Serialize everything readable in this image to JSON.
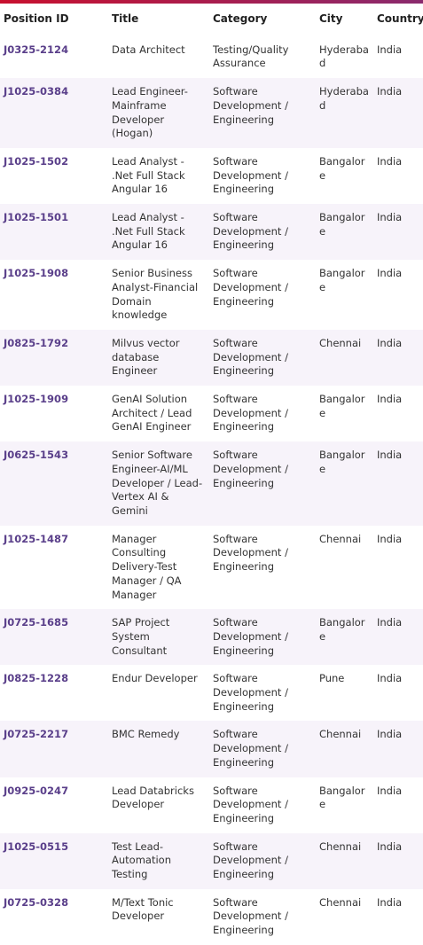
{
  "table": {
    "headers": [
      "Position ID",
      "Title",
      "Category",
      "City",
      "Country"
    ],
    "rows": [
      [
        "J0325-2124",
        "Data Architect",
        "Testing/Quality Assurance",
        "Hyderabad",
        "India"
      ],
      [
        "J1025-0384",
        "Lead Engineer-Mainframe Developer (Hogan)",
        "Software Development / Engineering",
        "Hyderabad",
        "India"
      ],
      [
        "J1025-1502",
        "Lead Analyst - .Net Full Stack Angular 16",
        "Software Development / Engineering",
        "Bangalore",
        "India"
      ],
      [
        "J1025-1501",
        "Lead Analyst - .Net Full Stack Angular 16",
        "Software Development / Engineering",
        "Bangalore",
        "India"
      ],
      [
        "J1025-1908",
        "Senior Business Analyst-Financial Domain knowledge",
        "Software Development / Engineering",
        "Bangalore",
        "India"
      ],
      [
        "J0825-1792",
        "Milvus vector database Engineer",
        "Software Development / Engineering",
        "Chennai",
        "India"
      ],
      [
        "J1025-1909",
        "GenAI Solution Architect / Lead GenAI Engineer",
        "Software Development / Engineering",
        "Bangalore",
        "India"
      ],
      [
        "J0625-1543",
        "Senior Software Engineer-AI/ML Developer / Lead-Vertex AI & Gemini",
        "Software Development / Engineering",
        "Bangalore",
        "India"
      ],
      [
        "J1025-1487",
        "Manager Consulting Delivery-Test Manager / QA Manager",
        "Software Development / Engineering",
        "Chennai",
        "India"
      ],
      [
        "J0725-1685",
        "SAP Project System Consultant",
        "Software Development / Engineering",
        "Bangalore",
        "India"
      ],
      [
        "J0825-1228",
        "Endur Developer",
        "Software Development / Engineering",
        "Pune",
        "India"
      ],
      [
        "J0725-2217",
        "BMC Remedy",
        "Software Development / Engineering",
        "Chennai",
        "India"
      ],
      [
        "J0925-0247",
        "Lead Databricks Developer",
        "Software Development / Engineering",
        "Bangalore",
        "India"
      ],
      [
        "J1025-0515",
        "Test Lead-Automation Testing",
        "Software Development / Engineering",
        "Chennai",
        "India"
      ],
      [
        "J0725-0328",
        "M/Text Tonic Developer",
        "Software Development / Engineering",
        "Chennai",
        "India"
      ]
    ]
  }
}
